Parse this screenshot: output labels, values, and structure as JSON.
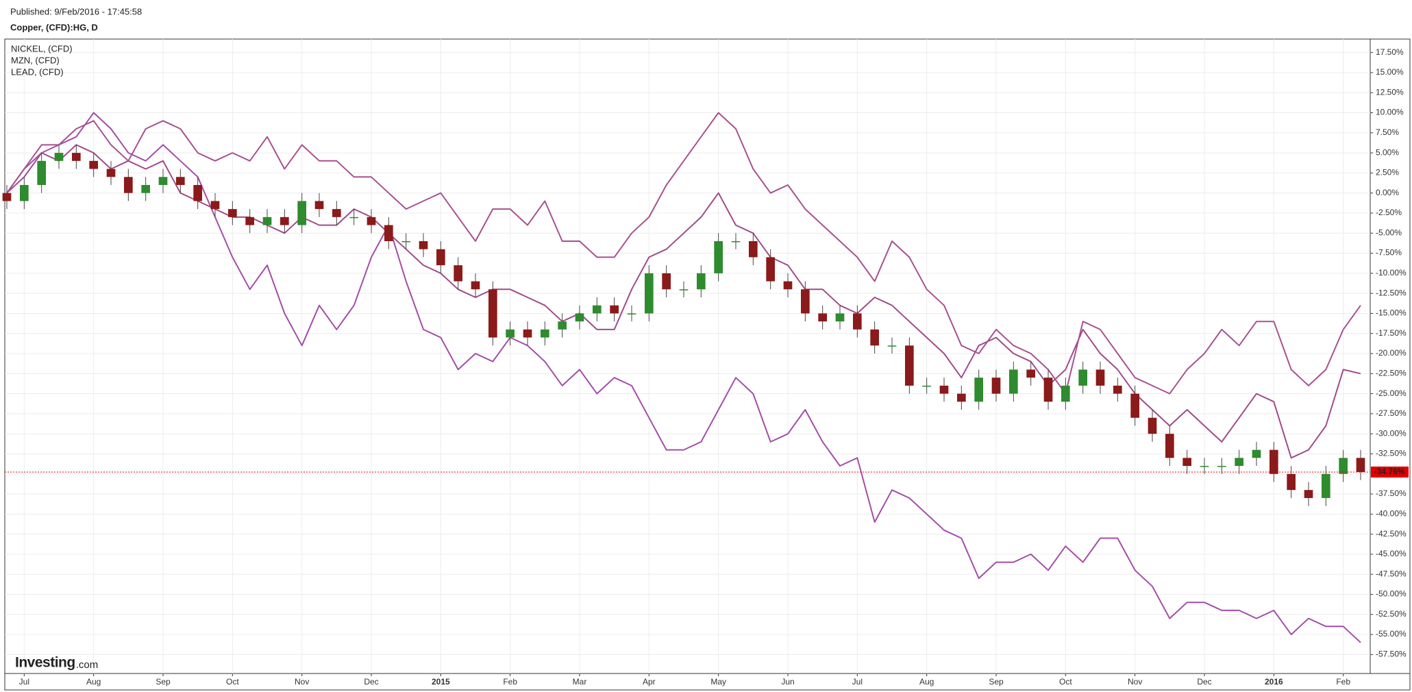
{
  "published": "Published: 9/Feb/2016 - 17:45:58",
  "chart_data": {
    "type": "candlestick",
    "title": "Copper, (CFD):HG, D",
    "logo": {
      "brand": "Investing",
      "suffix": ".com"
    },
    "categories": [
      null,
      "Jul",
      null,
      null,
      null,
      "Aug",
      null,
      null,
      null,
      "Sep",
      null,
      null,
      null,
      "Oct",
      null,
      null,
      null,
      "Nov",
      null,
      null,
      null,
      "Dec",
      null,
      null,
      null,
      "2015",
      null,
      null,
      null,
      "Feb",
      null,
      null,
      null,
      "Mar",
      null,
      null,
      null,
      "Apr",
      null,
      null,
      null,
      "May",
      null,
      null,
      null,
      "Jun",
      null,
      null,
      null,
      "Jul",
      null,
      null,
      null,
      "Aug",
      null,
      null,
      null,
      "Sep",
      null,
      null,
      null,
      "Oct",
      null,
      null,
      null,
      "Nov",
      null,
      null,
      null,
      "Dec",
      null,
      null,
      null,
      "2016",
      null,
      null,
      null,
      "Feb",
      null
    ],
    "candles": {
      "up_color": "#2e8b2e",
      "down_color": "#8b1a1a",
      "open": [
        0,
        -1,
        1,
        4,
        5,
        4,
        3,
        2,
        0,
        1,
        2,
        1,
        -1,
        -2,
        -3,
        -4,
        -3,
        -4,
        -1,
        -2,
        -3,
        -3,
        -4,
        -6,
        -6,
        -7,
        -9,
        -11,
        -12,
        -18,
        -17,
        -18,
        -17,
        -16,
        -15,
        -14,
        -15,
        -15,
        -10,
        -12,
        -12,
        -10,
        -6,
        -6,
        -8,
        -11,
        -12,
        -15,
        -16,
        -15,
        -17,
        -19,
        -19,
        -24,
        -24,
        -25,
        -26,
        -23,
        -25,
        -22,
        -23,
        -26,
        -24,
        -22,
        -24,
        -25,
        -28,
        -30,
        -33,
        -34,
        -34,
        -34,
        -33,
        -32,
        -35,
        -37,
        -38,
        -35,
        -33
      ],
      "high": [
        1,
        2,
        5,
        6,
        6,
        5,
        4,
        3,
        2,
        3,
        3,
        2,
        0,
        -1,
        -2,
        -2,
        -2,
        0,
        0,
        -1,
        -2,
        -2,
        -3,
        -5,
        -5,
        -6,
        -8,
        -10,
        -11,
        -16,
        -16,
        -16,
        -15,
        -14,
        -13,
        -13,
        -14,
        -9,
        -9,
        -11,
        -9,
        -5,
        -5,
        -5,
        -7,
        -10,
        -11,
        -14,
        -14,
        -14,
        -16,
        -18,
        -18,
        -23,
        -23,
        -24,
        -22,
        -22,
        -21,
        -21,
        -22,
        -23,
        -21,
        -21,
        -23,
        -24,
        -27,
        -29,
        -32,
        -33,
        -33,
        -32,
        -31,
        -31,
        -34,
        -36,
        -34,
        -32,
        -32
      ],
      "low": [
        -2,
        -2,
        0,
        3,
        3,
        2,
        1,
        -1,
        -1,
        0,
        0,
        -2,
        -3,
        -4,
        -5,
        -5,
        -5,
        -5,
        -3,
        -4,
        -4,
        -5,
        -7,
        -7,
        -8,
        -10,
        -12,
        -13,
        -19,
        -19,
        -19,
        -19,
        -18,
        -17,
        -16,
        -16,
        -16,
        -16,
        -13,
        -13,
        -13,
        -11,
        -7,
        -9,
        -12,
        -13,
        -16,
        -17,
        -17,
        -18,
        -20,
        -20,
        -25,
        -25,
        -26,
        -27,
        -27,
        -26,
        -26,
        -24,
        -27,
        -27,
        -25,
        -25,
        -26,
        -29,
        -31,
        -34,
        -35,
        -35,
        -35,
        -35,
        -34,
        -36,
        -38,
        -39,
        -39,
        -36,
        -35.76
      ],
      "close": [
        -1,
        1,
        4,
        5,
        4,
        3,
        2,
        0,
        1,
        2,
        1,
        -1,
        -2,
        -3,
        -4,
        -3,
        -4,
        -1,
        -2,
        -3,
        -3,
        -4,
        -6,
        -6,
        -7,
        -9,
        -11,
        -12,
        -18,
        -17,
        -18,
        -17,
        -16,
        -15,
        -14,
        -15,
        -15,
        -10,
        -12,
        -12,
        -10,
        -6,
        -6,
        -8,
        -11,
        -12,
        -15,
        -16,
        -15,
        -17,
        -19,
        -19,
        -24,
        -24,
        -25,
        -26,
        -23,
        -25,
        -22,
        -23,
        -26,
        -24,
        -22,
        -24,
        -25,
        -28,
        -30,
        -33,
        -34,
        -34,
        -34,
        -33,
        -32,
        -35,
        -37,
        -38,
        -35,
        -33,
        -34.76
      ]
    },
    "last_price": {
      "value": -34.76,
      "label": "-34.76%",
      "color": "#e00000"
    },
    "series": [
      {
        "name": "NICKEL,  (CFD)",
        "color": "#a44ca8",
        "values": [
          0,
          3,
          5,
          6,
          7,
          10,
          8,
          5,
          4,
          6,
          4,
          2,
          -3,
          -8,
          -12,
          -9,
          -15,
          -19,
          -14,
          -17,
          -14,
          -8,
          -4,
          -11,
          -17,
          -18,
          -22,
          -20,
          -21,
          -18,
          -19,
          -21,
          -24,
          -22,
          -25,
          -23,
          -24,
          -28,
          -32,
          -32,
          -31,
          -27,
          -23,
          -25,
          -31,
          -30,
          -27,
          -31,
          -34,
          -33,
          -41,
          -37,
          -38,
          -40,
          -42,
          -43,
          -48,
          -46,
          -46,
          -45,
          -47,
          -44,
          -46,
          -43,
          -43,
          -47,
          -49,
          -53,
          -51,
          -51,
          -52,
          -52,
          -53,
          -52,
          -55,
          -53,
          -54,
          -54,
          -56
        ]
      },
      {
        "name": "MZN,  (CFD)",
        "color": "#a04a88",
        "values": [
          0,
          2,
          5,
          4,
          6,
          5,
          3,
          4,
          3,
          4,
          0,
          -1,
          -2,
          -3,
          -3,
          -4,
          -5,
          -3,
          -4,
          -4,
          -2,
          -3,
          -5,
          -7,
          -9,
          -10,
          -12,
          -13,
          -12,
          -12,
          -13,
          -14,
          -16,
          -15,
          -17,
          -17,
          -12,
          -8,
          -7,
          -5,
          -3,
          0,
          -4,
          -5,
          -8,
          -9,
          -12,
          -12,
          -14,
          -15,
          -13,
          -14,
          -16,
          -18,
          -20,
          -23,
          -19,
          -18,
          -20,
          -21,
          -24,
          -22,
          -17,
          -20,
          -22,
          -25,
          -27,
          -29,
          -27,
          -29,
          -31,
          -28,
          -25,
          -26,
          -33,
          -32,
          -29,
          -22,
          -22.5
        ]
      },
      {
        "name": "LEAD,  (CFD)",
        "color": "#a8508f",
        "values": [
          0,
          3,
          6,
          6,
          8,
          9,
          6,
          4,
          8,
          9,
          8,
          5,
          4,
          5,
          4,
          7,
          3,
          6,
          4,
          4,
          2,
          2,
          0,
          -2,
          -1,
          0,
          -3,
          -6,
          -2,
          -2,
          -4,
          -1,
          -6,
          -6,
          -8,
          -8,
          -5,
          -3,
          1,
          4,
          7,
          10,
          8,
          3,
          0,
          1,
          -2,
          -4,
          -6,
          -8,
          -11,
          -6,
          -8,
          -12,
          -14,
          -19,
          -20,
          -17,
          -19,
          -20,
          -22,
          -25,
          -16,
          -17,
          -20,
          -23,
          -24,
          -25,
          -22,
          -20,
          -17,
          -19,
          -16,
          -16,
          -22,
          -24,
          -22,
          -17,
          -14
        ]
      }
    ],
    "ylim": [
      -59.86,
      19.18
    ],
    "yticks": [
      {
        "value": 17.5,
        "label": "17.50%"
      },
      {
        "value": 15,
        "label": "15.00%"
      },
      {
        "value": 12.5,
        "label": "12.50%"
      },
      {
        "value": 10,
        "label": "10.00%"
      },
      {
        "value": 7.5,
        "label": "7.50%"
      },
      {
        "value": 5,
        "label": "5.00%"
      },
      {
        "value": 2.5,
        "label": "2.50%"
      },
      {
        "value": 0,
        "label": "0.00%"
      },
      {
        "value": -2.5,
        "label": "-2.50%"
      },
      {
        "value": -5,
        "label": "-5.00%"
      },
      {
        "value": -7.5,
        "label": "-7.50%"
      },
      {
        "value": -10,
        "label": "-10.00%"
      },
      {
        "value": -12.5,
        "label": "-12.50%"
      },
      {
        "value": -15,
        "label": "-15.00%"
      },
      {
        "value": -17.5,
        "label": "-17.50%"
      },
      {
        "value": -20,
        "label": "-20.00%"
      },
      {
        "value": -22.5,
        "label": "-22.50%"
      },
      {
        "value": -25,
        "label": "-25.00%"
      },
      {
        "value": -27.5,
        "label": "-27.50%"
      },
      {
        "value": -30,
        "label": "-30.00%"
      },
      {
        "value": -32.5,
        "label": "-32.50%"
      },
      {
        "value": -35,
        "label": "-35.00%"
      },
      {
        "value": -37.5,
        "label": "-37.50%"
      },
      {
        "value": -40,
        "label": "-40.00%"
      },
      {
        "value": -42.5,
        "label": "-42.50%"
      },
      {
        "value": -45,
        "label": "-45.00%"
      },
      {
        "value": -47.5,
        "label": "-47.50%"
      },
      {
        "value": -50,
        "label": "-50.00%"
      },
      {
        "value": -52.5,
        "label": "-52.50%"
      },
      {
        "value": -55,
        "label": "-55.00%"
      },
      {
        "value": -57.5,
        "label": "-57.50%"
      }
    ],
    "grid": true
  }
}
